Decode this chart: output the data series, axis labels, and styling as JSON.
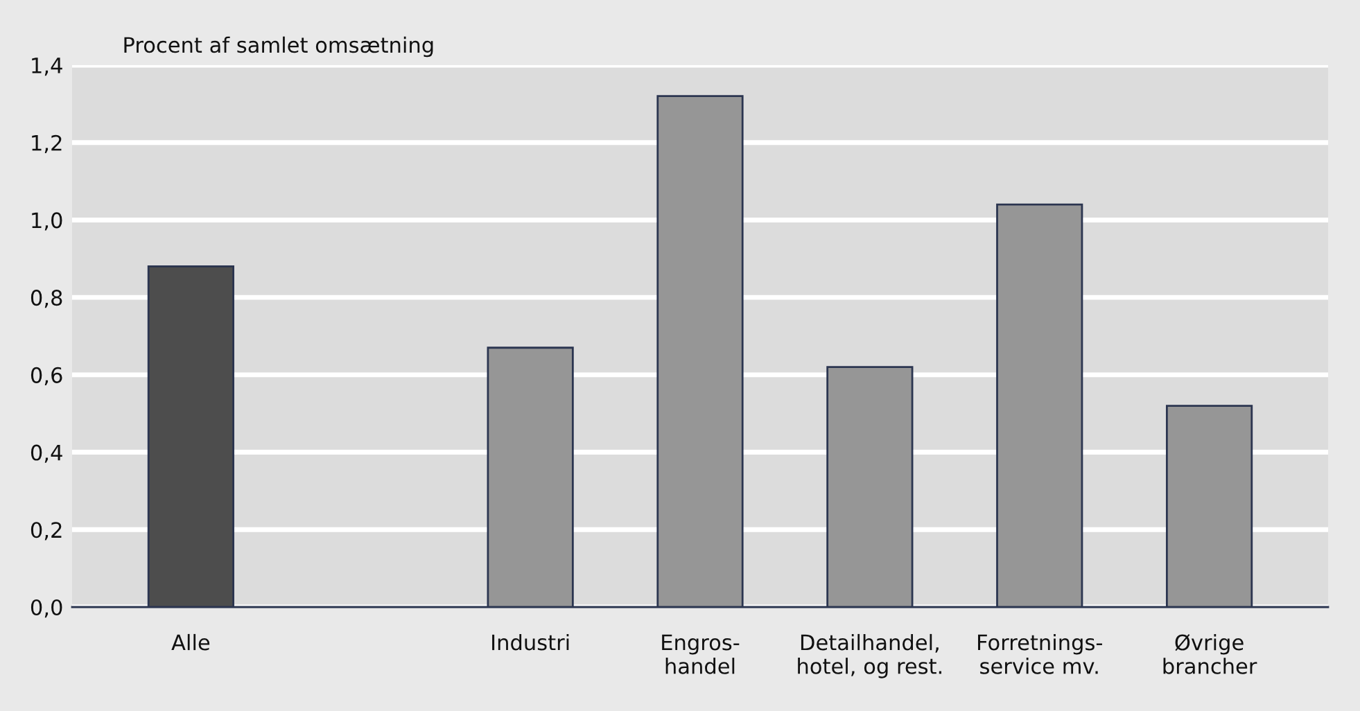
{
  "chart_data": {
    "type": "bar",
    "ylabel": "Procent af samlet omsætning",
    "categories": [
      "Alle",
      null,
      "Industri",
      "Engros-\nhandel",
      "Detailhandel,\nhotel, og rest.",
      "Forretnings-\nservice mv.",
      "Øvrige\nbrancher"
    ],
    "values": [
      0.88,
      null,
      0.67,
      1.32,
      0.62,
      1.04,
      0.52
    ],
    "colors": [
      "#4d4d4d",
      "#969696",
      "#969696",
      "#969696",
      "#969696",
      "#969696",
      "#969696"
    ],
    "ylim": [
      0,
      1.4
    ],
    "yticks": [
      {
        "value": 0,
        "label": "0,0"
      },
      {
        "value": 0.2,
        "label": "0,2"
      },
      {
        "value": 0.4,
        "label": "0,4"
      },
      {
        "value": 0.6,
        "label": "0,6"
      },
      {
        "value": 0.8,
        "label": "0,8"
      },
      {
        "value": 1.0,
        "label": "1,0"
      },
      {
        "value": 1.2,
        "label": "1,2"
      },
      {
        "value": 1.4,
        "label": "1,4"
      }
    ],
    "grid": "y",
    "legend": false
  }
}
